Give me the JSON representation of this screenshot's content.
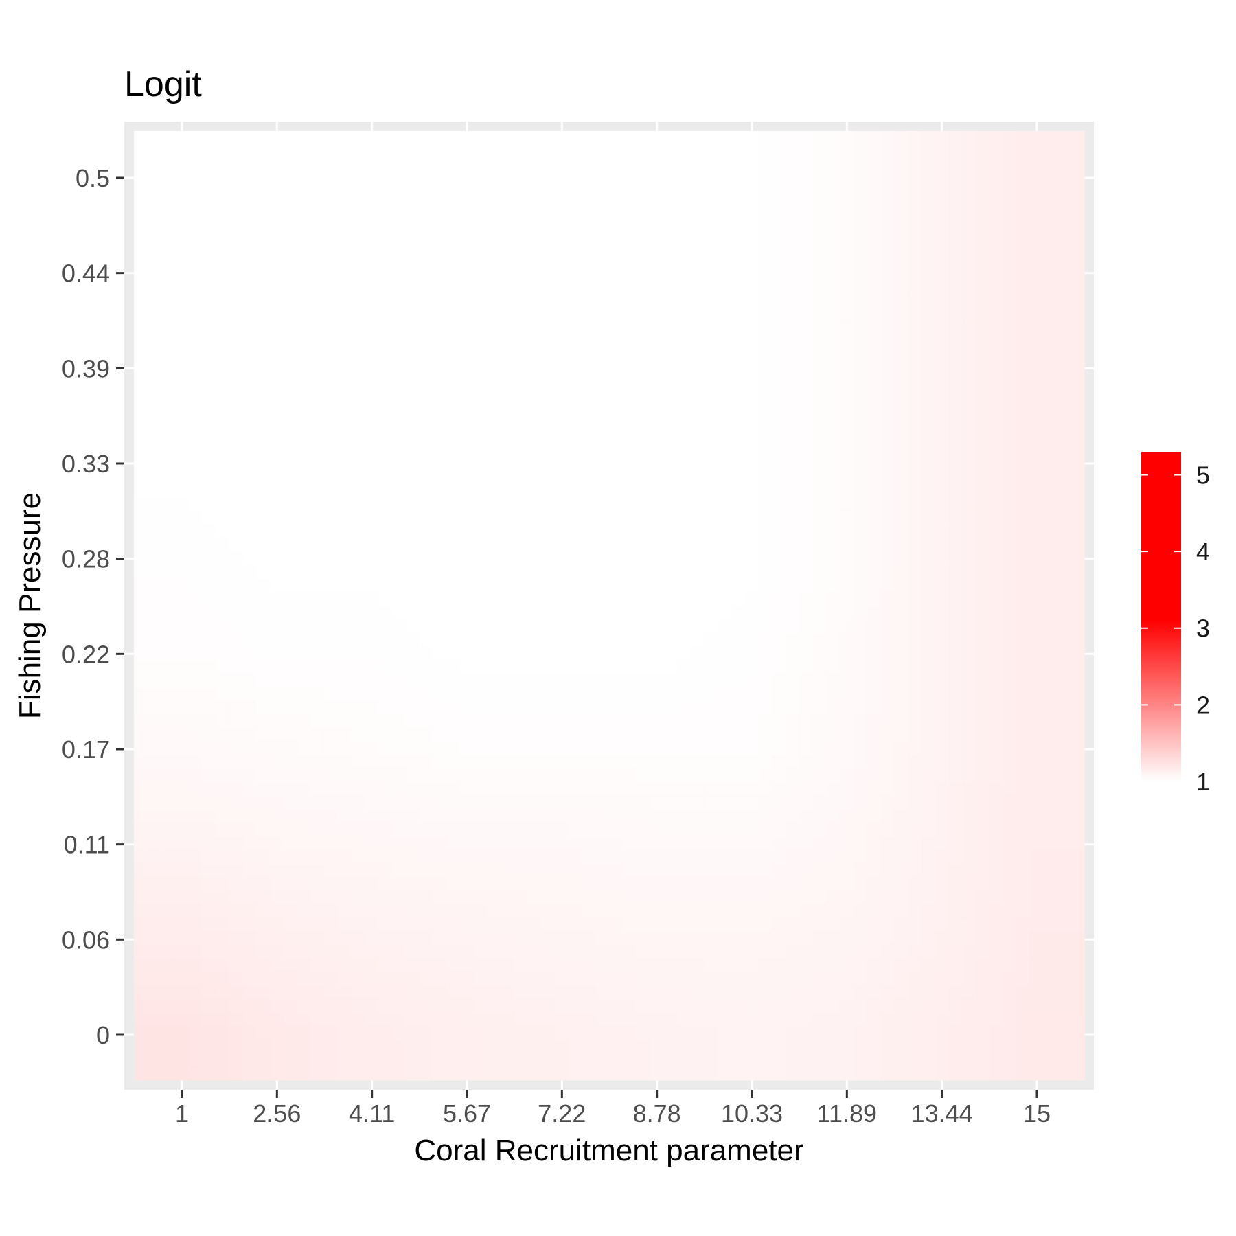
{
  "chart_data": {
    "type": "heatmap",
    "title": "Logit",
    "xlabel": "Coral Recruitment parameter",
    "ylabel": "Fishing Pressure",
    "x_ticks": [
      "1",
      "2.56",
      "4.11",
      "5.67",
      "7.22",
      "8.78",
      "10.33",
      "11.89",
      "13.44",
      "15"
    ],
    "y_ticks": [
      "0",
      "0.06",
      "0.11",
      "0.17",
      "0.22",
      "0.28",
      "0.33",
      "0.39",
      "0.44",
      "0.5"
    ],
    "xlim": [
      1,
      15
    ],
    "ylim": [
      0,
      0.5
    ],
    "z_grid_note": "rows ordered by y ticks (0 -> 0.5), columns by x ticks (1 -> 15)",
    "z": [
      [
        1.22,
        1.18,
        1.15,
        1.13,
        1.12,
        1.11,
        1.1,
        1.11,
        1.14,
        1.18
      ],
      [
        1.16,
        1.13,
        1.11,
        1.1,
        1.09,
        1.08,
        1.08,
        1.09,
        1.12,
        1.17
      ],
      [
        1.1,
        1.08,
        1.07,
        1.06,
        1.06,
        1.05,
        1.05,
        1.07,
        1.11,
        1.16
      ],
      [
        1.05,
        1.04,
        1.03,
        1.02,
        1.02,
        1.02,
        1.02,
        1.05,
        1.1,
        1.16
      ],
      [
        1.02,
        1.01,
        1.01,
        1.0,
        1.0,
        1.0,
        1.01,
        1.04,
        1.1,
        1.16
      ],
      [
        1.01,
        1.0,
        1.0,
        1.0,
        1.0,
        1.0,
        1.0,
        1.03,
        1.1,
        1.16
      ],
      [
        1.0,
        1.0,
        1.0,
        1.0,
        1.0,
        1.0,
        1.0,
        1.03,
        1.1,
        1.16
      ],
      [
        1.0,
        1.0,
        1.0,
        1.0,
        1.0,
        1.0,
        1.0,
        1.03,
        1.1,
        1.16
      ],
      [
        1.0,
        1.0,
        1.0,
        1.0,
        1.0,
        1.0,
        1.0,
        1.03,
        1.1,
        1.16
      ],
      [
        1.0,
        1.0,
        1.0,
        1.0,
        1.0,
        1.0,
        1.0,
        1.03,
        1.1,
        1.16
      ]
    ],
    "colorbar": {
      "ticks": [
        "1",
        "2",
        "3",
        "4",
        "5"
      ],
      "range": [
        1,
        5.3
      ],
      "low_color": "#ffffff",
      "high_color": "#ff0000",
      "saturation_value": 3.1
    },
    "panel_background": "#ebebeb",
    "grid_color": "#ffffff",
    "legend_position": "right",
    "grid": true
  }
}
